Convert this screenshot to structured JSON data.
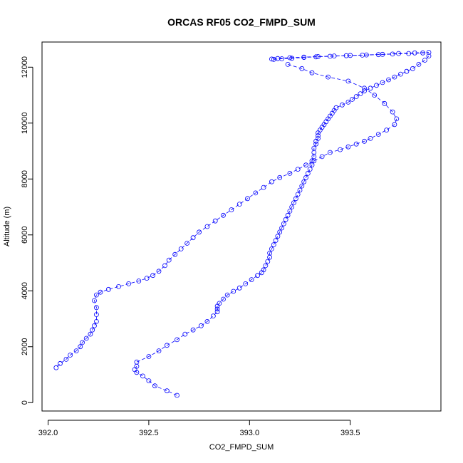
{
  "chart_data": {
    "type": "scatter",
    "title": "ORCAS RF05 CO2_FMPD_SUM",
    "xlabel": "CO2_FMPD_SUM",
    "ylabel": "Altitude (m)",
    "xlim": [
      391.97,
      393.95
    ],
    "ylim": [
      -300,
      12900
    ],
    "x_ticks": [
      392.0,
      392.5,
      393.0,
      393.5
    ],
    "x_tick_labels": [
      "392.0",
      "392.5",
      "393.0",
      "393.5"
    ],
    "y_ticks": [
      0,
      2000,
      4000,
      6000,
      8000,
      10000,
      12000
    ],
    "y_tick_labels": [
      "0",
      "2000",
      "4000",
      "6000",
      "8000",
      "10000",
      "12000"
    ],
    "grid": false,
    "marker": "open-circle",
    "line_style": "dashed",
    "color": "#0000ff",
    "series": [
      {
        "segments": [
          {
            "x": [
              392.64,
              392.59,
              392.53,
              392.5,
              392.47,
              392.44,
              392.43,
              392.44
            ],
            "y": [
              260,
              420,
              600,
              780,
              950,
              1080,
              1180,
              1300
            ]
          },
          {
            "x": [
              392.44,
              392.5,
              392.55,
              392.59,
              392.64,
              392.68,
              392.72,
              392.76,
              392.79,
              392.82,
              392.84,
              392.84,
              392.84,
              392.85,
              392.87,
              392.89,
              392.92,
              392.95,
              392.98,
              393.01,
              393.04,
              393.06,
              393.07,
              393.08,
              393.09,
              393.1,
              393.1,
              393.11,
              393.12,
              393.13,
              393.14,
              393.15,
              393.16,
              393.17,
              393.18,
              393.19,
              393.2,
              393.21,
              393.22,
              393.23,
              393.24,
              393.25,
              393.26,
              393.27,
              393.28,
              393.29,
              393.3,
              393.31,
              393.31,
              393.32,
              393.32,
              393.32,
              393.33,
              393.33,
              393.34,
              393.34,
              393.34,
              393.35,
              393.36,
              393.37,
              393.38,
              393.39,
              393.4,
              393.41,
              393.42,
              393.43,
              393.46,
              393.49,
              393.51,
              393.53,
              393.55,
              393.57,
              393.6,
              393.63,
              393.66,
              393.69,
              393.72,
              393.75,
              393.78,
              393.81,
              393.84,
              393.87,
              393.89
            ],
            "y": [
              1450,
              1650,
              1850,
              2050,
              2250,
              2450,
              2600,
              2750,
              2900,
              3100,
              3250,
              3350,
              3450,
              3550,
              3700,
              3850,
              3980,
              4100,
              4250,
              4400,
              4550,
              4650,
              4750,
              4900,
              5050,
              5200,
              5350,
              5500,
              5650,
              5800,
              5950,
              6100,
              6250,
              6400,
              6550,
              6700,
              6850,
              7000,
              7150,
              7300,
              7450,
              7600,
              7750,
              7900,
              8050,
              8200,
              8350,
              8500,
              8650,
              8800,
              8950,
              9100,
              9250,
              9350,
              9450,
              9550,
              9650,
              9750,
              9850,
              9950,
              10050,
              10150,
              10250,
              10350,
              10450,
              10550,
              10650,
              10750,
              10850,
              10950,
              11050,
              11150,
              11250,
              11350,
              11450,
              11550,
              11650,
              11750,
              11850,
              11950,
              12100,
              12250,
              12400
            ]
          }
        ]
      },
      {
        "segments": [
          {
            "x": [
              393.12,
              393.16,
              393.21,
              393.27,
              393.33,
              393.4,
              393.48,
              393.56,
              393.64,
              393.71,
              393.79,
              393.86,
              393.89,
              393.82,
              393.74,
              393.66,
              393.58,
              393.5,
              393.42,
              393.34,
              393.27,
              393.2,
              393.14,
              393.11
            ],
            "y": [
              12280,
              12300,
              12320,
              12350,
              12370,
              12390,
              12410,
              12430,
              12450,
              12470,
              12490,
              12510,
              12530,
              12510,
              12490,
              12460,
              12440,
              12420,
              12400,
              12380,
              12360,
              12340,
              12310,
              12290
            ]
          },
          {
            "x": [
              393.19,
              393.26,
              393.31,
              393.39,
              393.49,
              393.57,
              393.62,
              393.67,
              393.71,
              393.73,
              393.72,
              393.68,
              393.64,
              393.6,
              393.57,
              393.53,
              393.49,
              393.45,
              393.4,
              393.36,
              393.32,
              393.28,
              393.24,
              393.2,
              393.15,
              393.11,
              393.07,
              393.03,
              392.99,
              392.95,
              392.91,
              392.87,
              392.83,
              392.79,
              392.75,
              392.72,
              392.69,
              392.66,
              392.63,
              392.6,
              392.58,
              392.55,
              392.52,
              392.49,
              392.45,
              392.4,
              392.35,
              392.3,
              392.26,
              392.24,
              392.23,
              392.24,
              392.24,
              392.24,
              392.23,
              392.22,
              392.21,
              392.19,
              392.17,
              392.16,
              392.14,
              392.11,
              392.09,
              392.06,
              392.04
            ],
            "y": [
              12100,
              11950,
              11800,
              11650,
              11500,
              11250,
              11000,
              10700,
              10400,
              10150,
              9950,
              9750,
              9600,
              9450,
              9350,
              9250,
              9150,
              9050,
              8950,
              8800,
              8650,
              8500,
              8350,
              8200,
              8050,
              7900,
              7700,
              7500,
              7300,
              7100,
              6900,
              6700,
              6500,
              6300,
              6100,
              5900,
              5700,
              5500,
              5300,
              5100,
              4900,
              4700,
              4550,
              4450,
              4350,
              4250,
              4150,
              4050,
              3950,
              3850,
              3650,
              3400,
              3150,
              2900,
              2750,
              2600,
              2450,
              2300,
              2150,
              2000,
              1850,
              1700,
              1550,
              1400,
              1250
            ]
          }
        ]
      }
    ]
  }
}
